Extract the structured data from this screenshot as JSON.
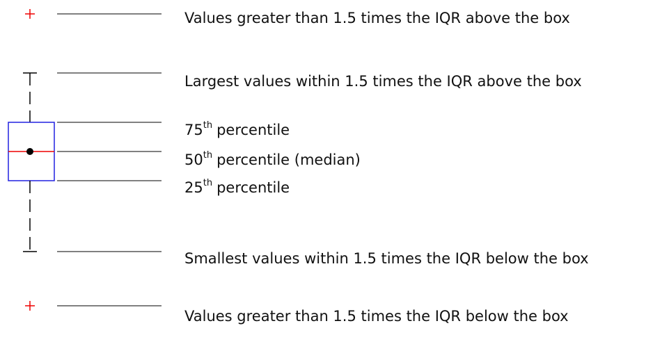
{
  "labels": [
    {
      "text": "Values greater than 1.5 times the IQR above the box"
    },
    {
      "text": "Largest values within 1.5 times the IQR above the box"
    },
    {
      "number": "75",
      "suffix": "th",
      "text": "percentile"
    },
    {
      "number": "50",
      "suffix": "th",
      "text": "percentile (median)"
    },
    {
      "number": "25",
      "suffix": "th",
      "text": "percentile"
    },
    {
      "text": "Smallest values within 1.5 times the IQR below the box"
    },
    {
      "text": "Values greater than 1.5 times the IQR below the box"
    }
  ]
}
